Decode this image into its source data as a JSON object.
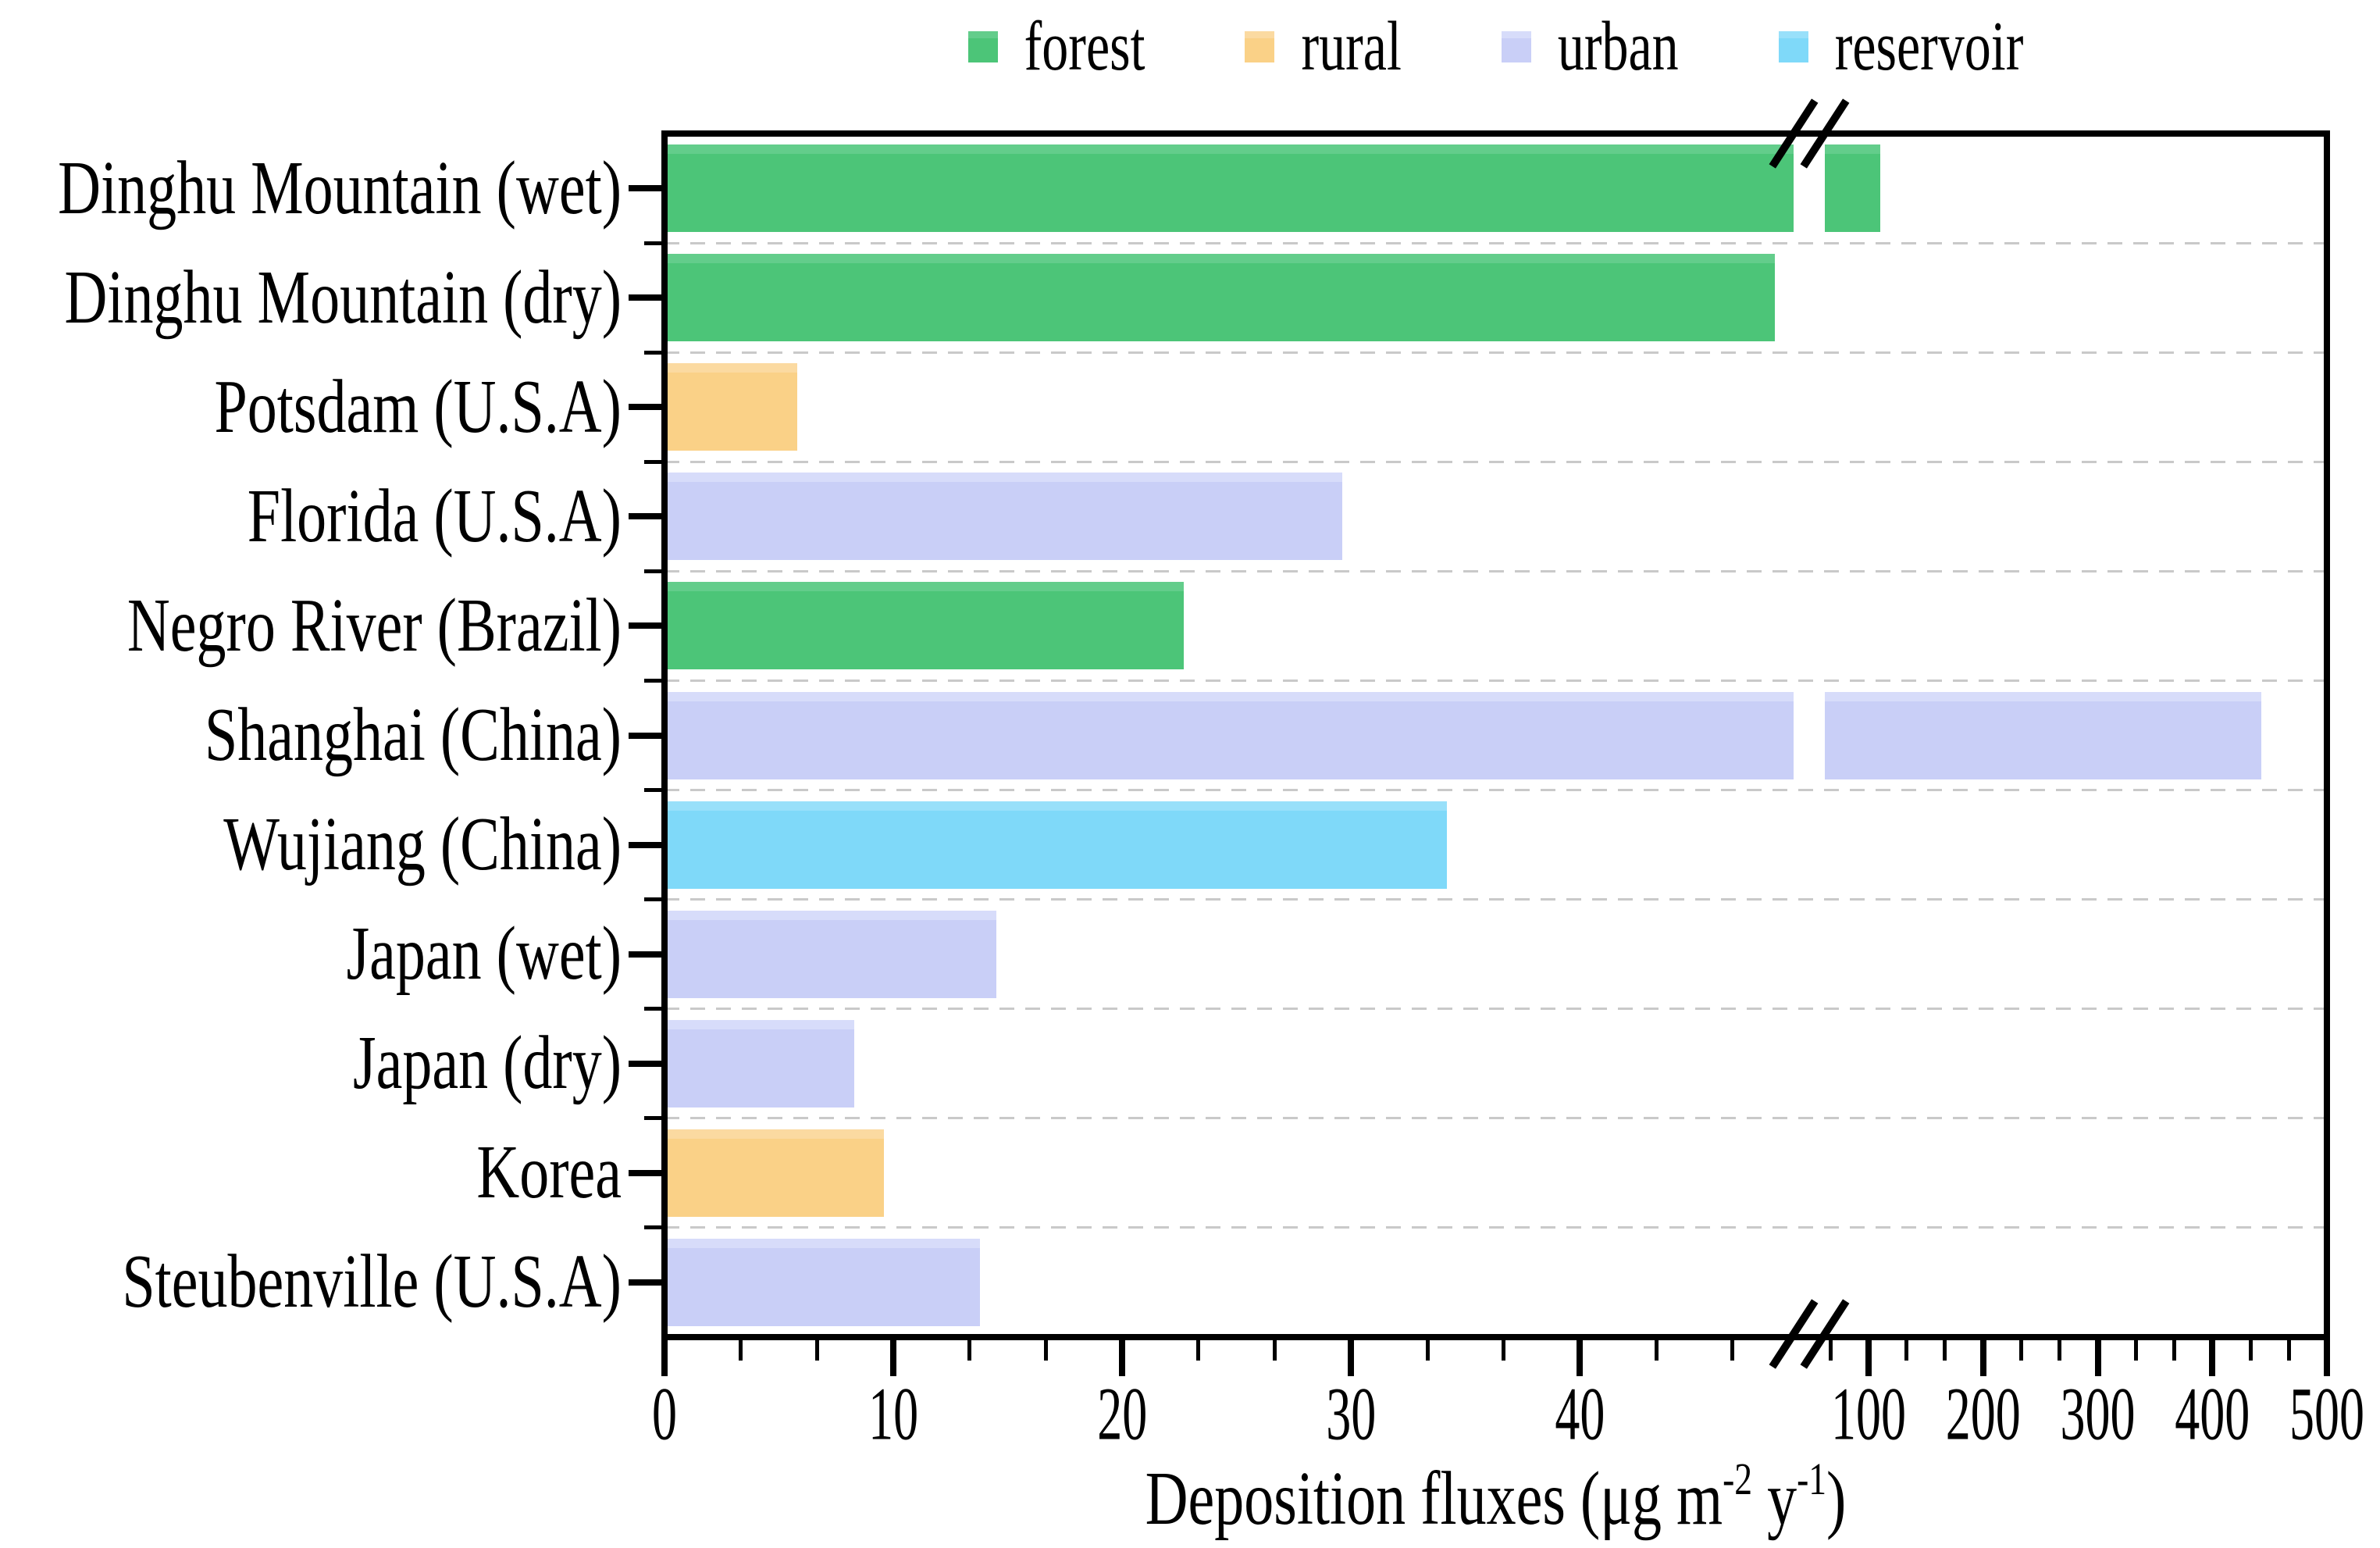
{
  "page": {
    "background": "#ffffff"
  },
  "chart_data": {
    "type": "bar",
    "orientation": "horizontal",
    "title": "",
    "xlabel": "Deposition fluxes (μg m-2 y-1)",
    "xlabel_parts": {
      "prefix": "Deposition fluxes (μg m",
      "sup1": "-2",
      "mid": " y",
      "sup2": "-1",
      "suffix": ")"
    },
    "categories": [
      "Dinghu Mountain (wet)",
      "Dinghu Mountain (dry)",
      "Potsdam (U.S.A)",
      "Florida (U.S.A)",
      "Negro River (Brazil)",
      "Shanghai (China)",
      "Wujiang (China)",
      "Japan (wet)",
      "Japan (dry)",
      "Korea",
      "Steubenville (U.S.A)"
    ],
    "values": [
      110,
      48.5,
      5.8,
      29.6,
      22.7,
      443,
      34.2,
      14.5,
      8.3,
      9.6,
      13.8
    ],
    "site_types": [
      "forest",
      "forest",
      "rural",
      "urban",
      "forest",
      "urban",
      "reservoir",
      "urban",
      "urban",
      "rural",
      "urban"
    ],
    "legend": [
      {
        "label": "forest",
        "color": "#4cc578",
        "color_light": "#63cd8b"
      },
      {
        "label": "rural",
        "color": "#fad187",
        "color_light": "#fbdaa1"
      },
      {
        "label": "urban",
        "color": "#c9cff7",
        "color_light": "#d7dcfa"
      },
      {
        "label": "reservoir",
        "color": "#7fd9f9",
        "color_light": "#98e0fa"
      }
    ],
    "legend_position": "top-center",
    "grid": {
      "horizontal_dashed": true,
      "color": "#c9c9c9"
    },
    "x_axis": {
      "break": true,
      "break_between": [
        48.6,
        66.7
      ],
      "segments": [
        {
          "range": [
            0,
            48.6
          ],
          "major_ticks": [
            0,
            10,
            20,
            30,
            40
          ],
          "minor_divisions": 3
        },
        {
          "range": [
            66.7,
            500
          ],
          "major_ticks": [
            100,
            200,
            300,
            400,
            500
          ],
          "minor_divisions": 3
        }
      ]
    },
    "y_axis": {
      "ticks": "one major tick per category, minor ticks at category boundaries"
    }
  }
}
